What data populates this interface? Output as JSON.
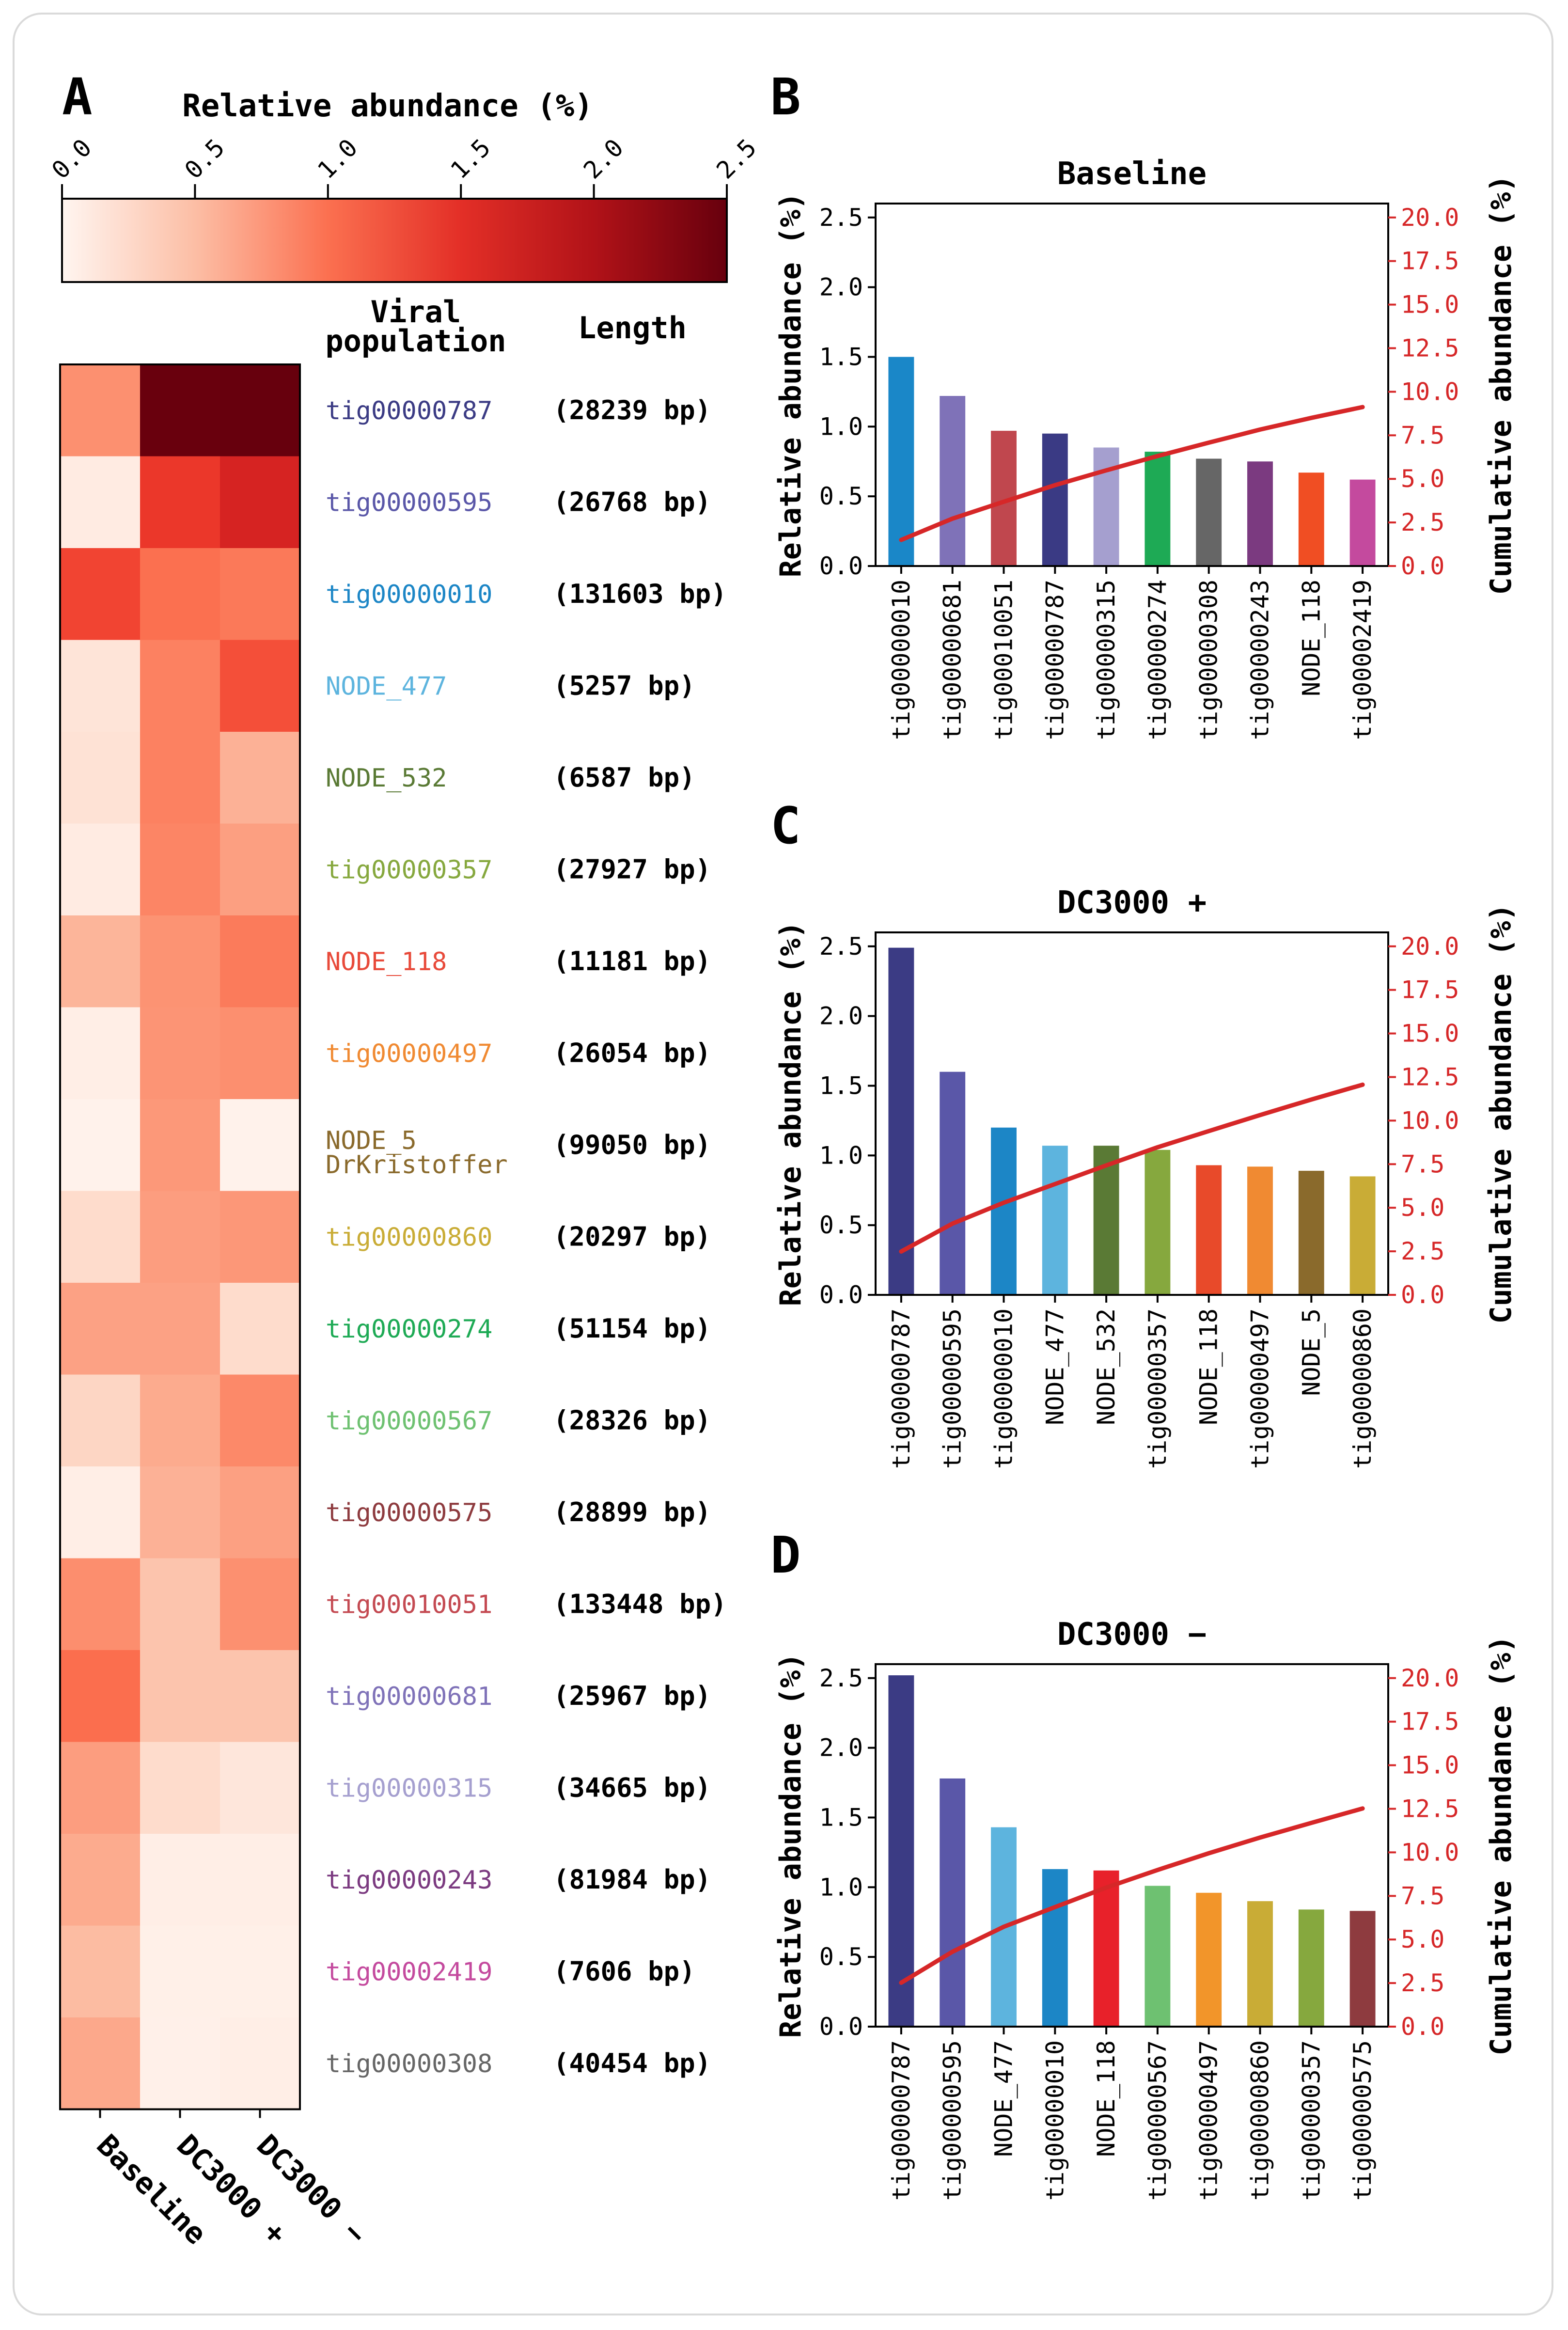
{
  "panel_labels": {
    "a": "A",
    "b": "B",
    "c": "C",
    "d": "D"
  },
  "colorbar": {
    "title": "Relative abundance (%)",
    "ticks": [
      "0.0",
      "0.5",
      "1.0",
      "1.5",
      "2.0",
      "2.5"
    ],
    "range": [
      0,
      2.5
    ]
  },
  "heatmap": {
    "col_header_population": "Viral population",
    "col_header_length": "Length",
    "conditions": [
      "Baseline",
      "DC3000 +",
      "DC3000 −"
    ]
  },
  "chart_data": [
    {
      "type": "heatmap",
      "title": "Relative abundance (%)",
      "columns": [
        "Baseline",
        "DC3000 +",
        "DC3000 −"
      ],
      "rows": [
        {
          "name": "tig00000787",
          "extra_line": "",
          "length": "(28239 bp)",
          "color": "#3b3b84",
          "values": [
            0.95,
            2.49,
            2.52
          ]
        },
        {
          "name": "tig00000595",
          "extra_line": "",
          "length": "(26768 bp)",
          "color": "#5a57a8",
          "values": [
            0.15,
            1.6,
            1.78
          ]
        },
        {
          "name": "tig00000010",
          "extra_line": "",
          "length": "(131603 bp)",
          "color": "#1c86c6",
          "values": [
            1.5,
            1.2,
            1.13
          ]
        },
        {
          "name": "NODE_477",
          "extra_line": "",
          "length": "(5257 bp)",
          "color": "#5db4de",
          "values": [
            0.25,
            1.07,
            1.43
          ]
        },
        {
          "name": "NODE_532",
          "extra_line": "",
          "length": "(6587 bp)",
          "color": "#5a7a35",
          "values": [
            0.28,
            1.07,
            0.7
          ]
        },
        {
          "name": "tig00000357",
          "extra_line": "",
          "length": "(27927 bp)",
          "color": "#86a83e",
          "values": [
            0.15,
            1.04,
            0.84
          ]
        },
        {
          "name": "NODE_118",
          "extra_line": "",
          "length": "(11181 bp)",
          "color": "#e84a3a",
          "values": [
            0.67,
            0.93,
            1.12
          ]
        },
        {
          "name": "tig00000497",
          "extra_line": "",
          "length": "(26054 bp)",
          "color": "#f08a32",
          "values": [
            0.1,
            0.92,
            0.96
          ]
        },
        {
          "name": "NODE_5",
          "extra_line": "DrKristoffer",
          "length": "(99050 bp)",
          "color": "#8a6a2c",
          "values": [
            0.05,
            0.89,
            0.05
          ]
        },
        {
          "name": "tig00000860",
          "extra_line": "",
          "length": "(20297 bp)",
          "color": "#c9ac36",
          "values": [
            0.35,
            0.85,
            0.9
          ]
        },
        {
          "name": "tig00000274",
          "extra_line": "",
          "length": "(51154 bp)",
          "color": "#1eaa55",
          "values": [
            0.82,
            0.82,
            0.35
          ]
        },
        {
          "name": "tig00000567",
          "extra_line": "",
          "length": "(28326 bp)",
          "color": "#6ec171",
          "values": [
            0.4,
            0.75,
            1.01
          ]
        },
        {
          "name": "tig00000575",
          "extra_line": "",
          "length": "(28899 bp)",
          "color": "#8e3b3f",
          "values": [
            0.1,
            0.7,
            0.83
          ]
        },
        {
          "name": "tig00010051",
          "extra_line": "",
          "length": "(133448 bp)",
          "color": "#c44a52",
          "values": [
            0.97,
            0.55,
            0.95
          ]
        },
        {
          "name": "tig00000681",
          "extra_line": "",
          "length": "(25967 bp)",
          "color": "#7f72b8",
          "values": [
            1.22,
            0.55,
            0.55
          ]
        },
        {
          "name": "tig00000315",
          "extra_line": "",
          "length": "(34665 bp)",
          "color": "#a59fcf",
          "values": [
            0.85,
            0.35,
            0.22
          ]
        },
        {
          "name": "tig00000243",
          "extra_line": "",
          "length": "(81984 bp)",
          "color": "#7b3a80",
          "values": [
            0.75,
            0.1,
            0.1
          ]
        },
        {
          "name": "tig00002419",
          "extra_line": "",
          "length": "(7606 bp)",
          "color": "#c44a9e",
          "values": [
            0.62,
            0.08,
            0.08
          ]
        },
        {
          "name": "tig00000308",
          "extra_line": "",
          "length": "(40454 bp)",
          "color": "#666666",
          "values": [
            0.77,
            0.07,
            0.1
          ]
        }
      ]
    },
    {
      "type": "bar",
      "panel": "B",
      "title": "Baseline",
      "ylabel": "Relative abundance (%)",
      "y2label": "Cumulative abundance (%)",
      "ylim": [
        0,
        2.6
      ],
      "yticks": [
        "0.0",
        "0.5",
        "1.0",
        "1.5",
        "2.0",
        "2.5"
      ],
      "y2lim": [
        0,
        20.8
      ],
      "y2ticks": [
        "0.0",
        "2.5",
        "5.0",
        "7.5",
        "10.0",
        "12.5",
        "15.0",
        "17.5",
        "20.0"
      ],
      "categories": [
        "tig00000010",
        "tig00000681",
        "tig00010051",
        "tig00000787",
        "tig00000315",
        "tig00000274",
        "tig00000308",
        "tig00000243",
        "NODE_118",
        "tig00002419"
      ],
      "values": [
        1.5,
        1.22,
        0.97,
        0.95,
        0.85,
        0.82,
        0.77,
        0.75,
        0.67,
        0.62
      ],
      "colors": [
        "#1a87c8",
        "#7f72b8",
        "#c0474e",
        "#3a3a84",
        "#a59fcf",
        "#1eaa55",
        "#666666",
        "#7b3a80",
        "#f04e23",
        "#c44a9e"
      ],
      "cumulative": [
        1.5,
        2.72,
        3.69,
        4.64,
        5.49,
        6.31,
        7.08,
        7.83,
        8.5,
        9.12
      ],
      "line_color": "#d62728"
    },
    {
      "type": "bar",
      "panel": "C",
      "title": "DC3000 +",
      "ylabel": "Relative abundance (%)",
      "y2label": "Cumulative abundance (%)",
      "ylim": [
        0,
        2.6
      ],
      "yticks": [
        "0.0",
        "0.5",
        "1.0",
        "1.5",
        "2.0",
        "2.5"
      ],
      "y2lim": [
        0,
        20.8
      ],
      "y2ticks": [
        "0.0",
        "2.5",
        "5.0",
        "7.5",
        "10.0",
        "12.5",
        "15.0",
        "17.5",
        "20.0"
      ],
      "categories": [
        "tig00000787",
        "tig00000595",
        "tig00000010",
        "NODE_477",
        "NODE_532",
        "tig00000357",
        "NODE_118",
        "tig00000497",
        "NODE_5",
        "tig00000860"
      ],
      "values": [
        2.49,
        1.6,
        1.2,
        1.07,
        1.07,
        1.04,
        0.93,
        0.92,
        0.89,
        0.85
      ],
      "colors": [
        "#3b3b84",
        "#5a57a8",
        "#1c86c6",
        "#5db4de",
        "#5a7a35",
        "#86a83e",
        "#e84a2a",
        "#f08a32",
        "#8a6a2c",
        "#c9ac36"
      ],
      "cumulative": [
        2.49,
        4.09,
        5.29,
        6.36,
        7.43,
        8.47,
        9.4,
        10.32,
        11.21,
        12.06
      ],
      "line_color": "#d62728"
    },
    {
      "type": "bar",
      "panel": "D",
      "title": "DC3000 −",
      "ylabel": "Relative abundance (%)",
      "y2label": "Cumulative abundance (%)",
      "ylim": [
        0,
        2.6
      ],
      "yticks": [
        "0.0",
        "0.5",
        "1.0",
        "1.5",
        "2.0",
        "2.5"
      ],
      "y2lim": [
        0,
        20.8
      ],
      "y2ticks": [
        "0.0",
        "2.5",
        "5.0",
        "7.5",
        "10.0",
        "12.5",
        "15.0",
        "17.5",
        "20.0"
      ],
      "categories": [
        "tig00000787",
        "tig00000595",
        "NODE_477",
        "tig00000010",
        "NODE_118",
        "tig00000567",
        "tig00000497",
        "tig00000860",
        "tig00000357",
        "tig00000575"
      ],
      "values": [
        2.52,
        1.78,
        1.43,
        1.13,
        1.12,
        1.01,
        0.96,
        0.9,
        0.84,
        0.83
      ],
      "colors": [
        "#3b3b84",
        "#5a57a8",
        "#5db4de",
        "#1c86c6",
        "#e8212a",
        "#6ec171",
        "#f2952a",
        "#c9ac36",
        "#86a83e",
        "#8e3b3f"
      ],
      "cumulative": [
        2.52,
        4.3,
        5.73,
        6.86,
        7.98,
        8.99,
        9.95,
        10.85,
        11.69,
        12.52
      ],
      "line_color": "#d62728"
    }
  ]
}
